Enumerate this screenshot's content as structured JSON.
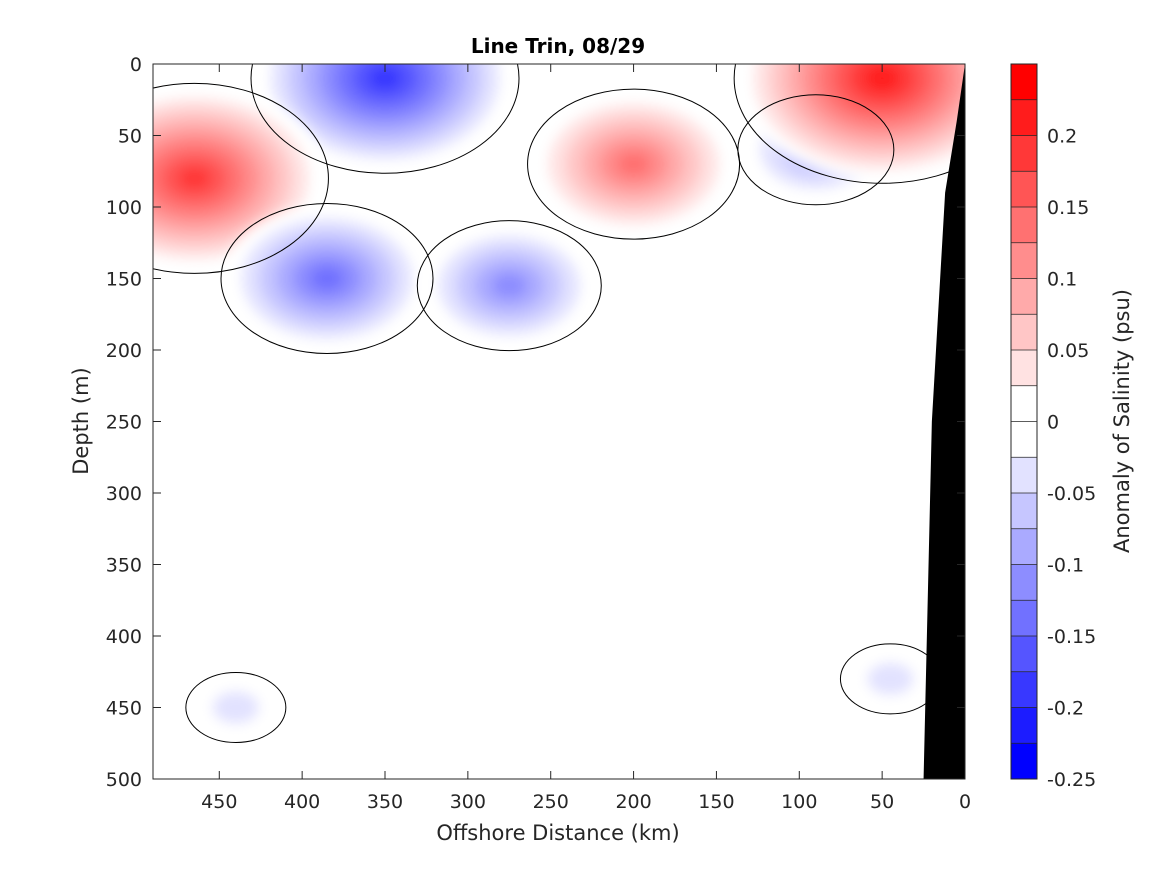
{
  "chart_data": {
    "type": "heatmap",
    "subtype": "filled-contour",
    "title": "Line Trin, 08/29",
    "xlabel": "Offshore Distance (km)",
    "ylabel": "Depth (m)",
    "xlim": [
      490,
      0
    ],
    "ylim": [
      0,
      500
    ],
    "x_reversed": true,
    "y_reversed": true,
    "x_ticks": [
      450,
      400,
      350,
      300,
      250,
      200,
      150,
      100,
      50,
      0
    ],
    "y_ticks": [
      0,
      50,
      100,
      150,
      200,
      250,
      300,
      350,
      400,
      450,
      500
    ],
    "colorbar": {
      "label": "Anomaly of Salinity (psu)",
      "range": [
        -0.25,
        0.25
      ],
      "tick_values": [
        -0.25,
        -0.2,
        -0.15,
        -0.1,
        -0.05,
        0,
        0.05,
        0.1,
        0.15,
        0.2
      ],
      "tick_labels": [
        "-0.25",
        "-0.2",
        "-0.15",
        "-0.1",
        "-0.05",
        "0",
        "0.05",
        "0.1",
        "0.15",
        "0.2"
      ],
      "levels": [
        {
          "low": -0.25,
          "high": -0.225,
          "color": "#0000ff"
        },
        {
          "low": -0.225,
          "high": -0.2,
          "color": "#1c1cff"
        },
        {
          "low": -0.2,
          "high": -0.175,
          "color": "#3838ff"
        },
        {
          "low": -0.175,
          "high": -0.15,
          "color": "#5555ff"
        },
        {
          "low": -0.15,
          "high": -0.125,
          "color": "#7171ff"
        },
        {
          "low": -0.125,
          "high": -0.1,
          "color": "#8d8dff"
        },
        {
          "low": -0.1,
          "high": -0.075,
          "color": "#aaaaff"
        },
        {
          "low": -0.075,
          "high": -0.05,
          "color": "#c6c6ff"
        },
        {
          "low": -0.05,
          "high": -0.025,
          "color": "#e2e2ff"
        },
        {
          "low": -0.025,
          "high": 0,
          "color": "#ffffff"
        },
        {
          "low": 0,
          "high": 0.025,
          "color": "#ffffff"
        },
        {
          "low": 0.025,
          "high": 0.05,
          "color": "#ffe2e2"
        },
        {
          "low": 0.05,
          "high": 0.075,
          "color": "#ffc6c6"
        },
        {
          "low": 0.075,
          "high": 0.1,
          "color": "#ffaaaa"
        },
        {
          "low": 0.1,
          "high": 0.125,
          "color": "#ff8d8d"
        },
        {
          "low": 0.125,
          "high": 0.15,
          "color": "#ff7171"
        },
        {
          "low": 0.15,
          "high": 0.175,
          "color": "#ff5555"
        },
        {
          "low": 0.175,
          "high": 0.2,
          "color": "#ff3838"
        },
        {
          "low": 0.2,
          "high": 0.225,
          "color": "#ff1c1c"
        },
        {
          "low": 0.225,
          "high": 0.25,
          "color": "#ff0000"
        }
      ]
    },
    "features": [
      {
        "name": "surface fresh anomaly",
        "sign": "negative",
        "center": [
          350,
          10
        ],
        "peak": -0.2
      },
      {
        "name": "offshore saline core",
        "sign": "positive",
        "center": [
          465,
          80
        ],
        "peak": 0.2
      },
      {
        "name": "fresh eddy",
        "sign": "negative",
        "center": [
          385,
          150
        ],
        "peak": -0.15
      },
      {
        "name": "fresh column",
        "sign": "negative",
        "center": [
          275,
          155
        ],
        "peak": -0.12
      },
      {
        "name": "mid-shelf saline band",
        "sign": "positive",
        "center": [
          200,
          70
        ],
        "peak": 0.15
      },
      {
        "name": "nearshore fresh lens",
        "sign": "negative",
        "center": [
          90,
          60
        ],
        "peak": -0.1
      },
      {
        "name": "coastal saline maximum",
        "sign": "positive",
        "center": [
          50,
          10
        ],
        "peak": 0.23
      },
      {
        "name": "weak deep fresh patch",
        "sign": "negative",
        "center": [
          440,
          450
        ],
        "peak": -0.04
      },
      {
        "name": "weak deep fresh patch",
        "sign": "negative",
        "center": [
          45,
          430
        ],
        "peak": -0.04
      }
    ],
    "bathymetry": {
      "color": "#000000",
      "profile": [
        [
          0,
          0
        ],
        [
          5,
          40
        ],
        [
          12,
          90
        ],
        [
          20,
          250
        ],
        [
          25,
          500
        ]
      ]
    },
    "zero_contour_color": "#000000"
  }
}
